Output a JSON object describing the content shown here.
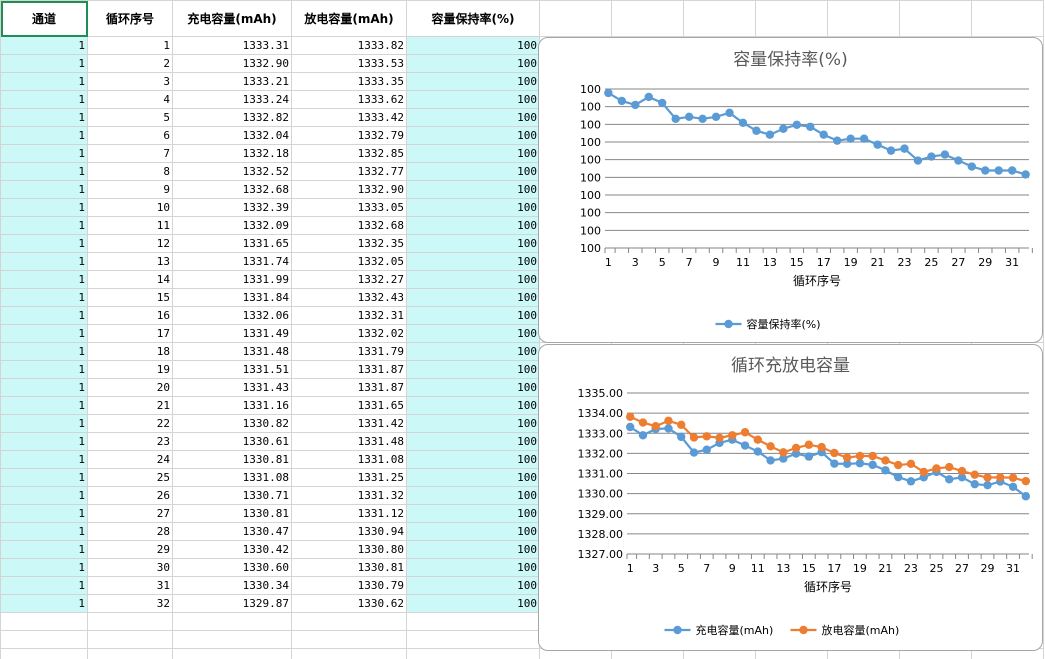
{
  "sheet": {
    "headers": [
      "通道",
      "循环序号",
      "充电容量(mAh)",
      "放电容量(mAh)",
      "容量保持率(%)"
    ],
    "rows": [
      [
        1,
        1,
        "1333.31",
        "1333.82",
        100
      ],
      [
        1,
        2,
        "1332.90",
        "1333.53",
        100
      ],
      [
        1,
        3,
        "1333.21",
        "1333.35",
        100
      ],
      [
        1,
        4,
        "1333.24",
        "1333.62",
        100
      ],
      [
        1,
        5,
        "1332.82",
        "1333.42",
        100
      ],
      [
        1,
        6,
        "1332.04",
        "1332.79",
        100
      ],
      [
        1,
        7,
        "1332.18",
        "1332.85",
        100
      ],
      [
        1,
        8,
        "1332.52",
        "1332.77",
        100
      ],
      [
        1,
        9,
        "1332.68",
        "1332.90",
        100
      ],
      [
        1,
        10,
        "1332.39",
        "1333.05",
        100
      ],
      [
        1,
        11,
        "1332.09",
        "1332.68",
        100
      ],
      [
        1,
        12,
        "1331.65",
        "1332.35",
        100
      ],
      [
        1,
        13,
        "1331.74",
        "1332.05",
        100
      ],
      [
        1,
        14,
        "1331.99",
        "1332.27",
        100
      ],
      [
        1,
        15,
        "1331.84",
        "1332.43",
        100
      ],
      [
        1,
        16,
        "1332.06",
        "1332.31",
        100
      ],
      [
        1,
        17,
        "1331.49",
        "1332.02",
        100
      ],
      [
        1,
        18,
        "1331.48",
        "1331.79",
        100
      ],
      [
        1,
        19,
        "1331.51",
        "1331.87",
        100
      ],
      [
        1,
        20,
        "1331.43",
        "1331.87",
        100
      ],
      [
        1,
        21,
        "1331.16",
        "1331.65",
        100
      ],
      [
        1,
        22,
        "1330.82",
        "1331.42",
        100
      ],
      [
        1,
        23,
        "1330.61",
        "1331.48",
        100
      ],
      [
        1,
        24,
        "1330.81",
        "1331.08",
        100
      ],
      [
        1,
        25,
        "1331.08",
        "1331.25",
        100
      ],
      [
        1,
        26,
        "1330.71",
        "1331.32",
        100
      ],
      [
        1,
        27,
        "1330.81",
        "1331.12",
        100
      ],
      [
        1,
        28,
        "1330.47",
        "1330.94",
        100
      ],
      [
        1,
        29,
        "1330.42",
        "1330.80",
        100
      ],
      [
        1,
        30,
        "1330.60",
        "1330.81",
        100
      ],
      [
        1,
        31,
        "1330.34",
        "1330.79",
        100
      ],
      [
        1,
        32,
        "1329.87",
        "1330.62",
        100
      ]
    ]
  },
  "chart_data": [
    {
      "type": "line",
      "title": "容量保持率(%)",
      "xlabel": "循环序号",
      "ylabel": "",
      "x": [
        1,
        2,
        3,
        4,
        5,
        6,
        7,
        8,
        9,
        10,
        11,
        12,
        13,
        14,
        15,
        16,
        17,
        18,
        19,
        20,
        21,
        22,
        23,
        24,
        25,
        26,
        27,
        28,
        29,
        30,
        31,
        32
      ],
      "x_tick_labels": [
        "1",
        "3",
        "5",
        "7",
        "9",
        "11",
        "13",
        "15",
        "17",
        "19",
        "21",
        "23",
        "25",
        "27",
        "29",
        "31"
      ],
      "y_tick_labels": [
        "100",
        "100",
        "100",
        "100",
        "100",
        "100",
        "100",
        "100",
        "100",
        "100"
      ],
      "series": [
        {
          "name": "容量保持率(%)",
          "color": "#5b9bd5",
          "values": [
            100.038,
            100.034,
            100.032,
            100.036,
            100.033,
            100.025,
            100.026,
            100.025,
            100.026,
            100.028,
            100.023,
            100.019,
            100.017,
            100.02,
            100.022,
            100.021,
            100.017,
            100.014,
            100.015,
            100.015,
            100.012,
            100.009,
            100.01,
            100.004,
            100.006,
            100.007,
            100.004,
            100.001,
            99.999,
            99.999,
            99.999,
            99.997
          ]
        }
      ],
      "ylim": [
        99.96,
        100.04
      ],
      "grid": true,
      "legend": "bottom"
    },
    {
      "type": "line",
      "title": "循环充放电容量",
      "xlabel": "循环序号",
      "ylabel": "",
      "x": [
        1,
        2,
        3,
        4,
        5,
        6,
        7,
        8,
        9,
        10,
        11,
        12,
        13,
        14,
        15,
        16,
        17,
        18,
        19,
        20,
        21,
        22,
        23,
        24,
        25,
        26,
        27,
        28,
        29,
        30,
        31,
        32
      ],
      "x_tick_labels": [
        "1",
        "3",
        "5",
        "7",
        "9",
        "11",
        "13",
        "15",
        "17",
        "19",
        "21",
        "23",
        "25",
        "27",
        "29",
        "31"
      ],
      "y_tick_labels": [
        "1335.00",
        "1334.00",
        "1333.00",
        "1332.00",
        "1331.00",
        "1330.00",
        "1329.00",
        "1328.00",
        "1327.00"
      ],
      "series": [
        {
          "name": "充电容量(mAh)",
          "color": "#5b9bd5",
          "values": [
            1333.31,
            1332.9,
            1333.21,
            1333.24,
            1332.82,
            1332.04,
            1332.18,
            1332.52,
            1332.68,
            1332.39,
            1332.09,
            1331.65,
            1331.74,
            1331.99,
            1331.84,
            1332.06,
            1331.49,
            1331.48,
            1331.51,
            1331.43,
            1331.16,
            1330.82,
            1330.61,
            1330.81,
            1331.08,
            1330.71,
            1330.81,
            1330.47,
            1330.42,
            1330.6,
            1330.34,
            1329.87
          ]
        },
        {
          "name": "放电容量(mAh)",
          "color": "#ed7d31",
          "values": [
            1333.82,
            1333.53,
            1333.35,
            1333.62,
            1333.42,
            1332.79,
            1332.85,
            1332.77,
            1332.9,
            1333.05,
            1332.68,
            1332.35,
            1332.05,
            1332.27,
            1332.43,
            1332.31,
            1332.02,
            1331.79,
            1331.87,
            1331.87,
            1331.65,
            1331.42,
            1331.48,
            1331.08,
            1331.25,
            1331.32,
            1331.12,
            1330.94,
            1330.8,
            1330.81,
            1330.79,
            1330.62
          ]
        }
      ],
      "ylim": [
        1327,
        1335
      ],
      "grid": true,
      "legend": "bottom"
    }
  ]
}
